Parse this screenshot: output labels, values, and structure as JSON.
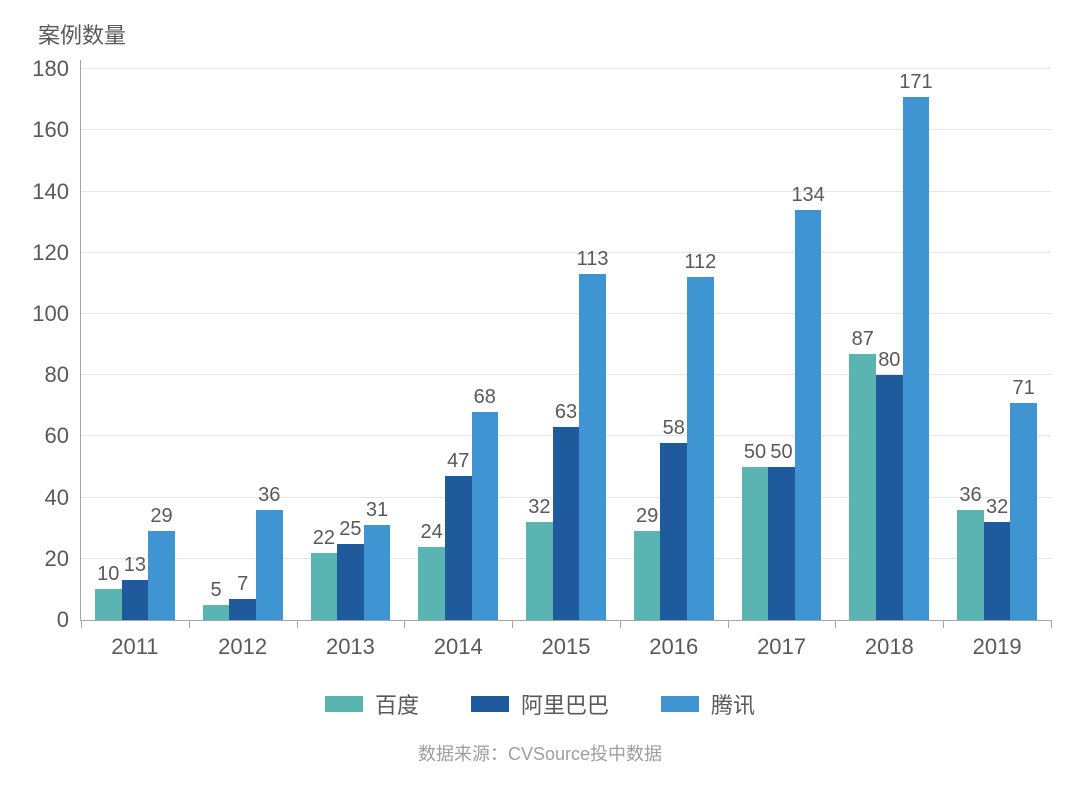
{
  "chart": {
    "type": "bar",
    "y_axis_title": "案例数量",
    "y_ticks": [
      0,
      20,
      40,
      60,
      80,
      100,
      120,
      140,
      160,
      180
    ],
    "y_max": 183,
    "categories": [
      "2011",
      "2012",
      "2013",
      "2014",
      "2015",
      "2016",
      "2017",
      "2018",
      "2019"
    ],
    "series": [
      {
        "name": "百度",
        "color": "#5ab5b2",
        "values": [
          10,
          5,
          22,
          24,
          32,
          29,
          50,
          87,
          36
        ]
      },
      {
        "name": "阿里巴巴",
        "color": "#1f5a9c",
        "values": [
          13,
          7,
          25,
          47,
          63,
          58,
          50,
          80,
          32
        ]
      },
      {
        "name": "腾讯",
        "color": "#3e95d1",
        "values": [
          29,
          36,
          31,
          68,
          113,
          112,
          134,
          171,
          71
        ]
      }
    ],
    "axis_line_color": "#a6a6a6",
    "grid_color": "#e6e6e6",
    "text_color": "#595959",
    "tick_fontsize": 22,
    "label_fontsize": 20,
    "bar_group_width": 0.74,
    "background_color": "#ffffff"
  },
  "source_label": "数据来源：CVSource投中数据"
}
